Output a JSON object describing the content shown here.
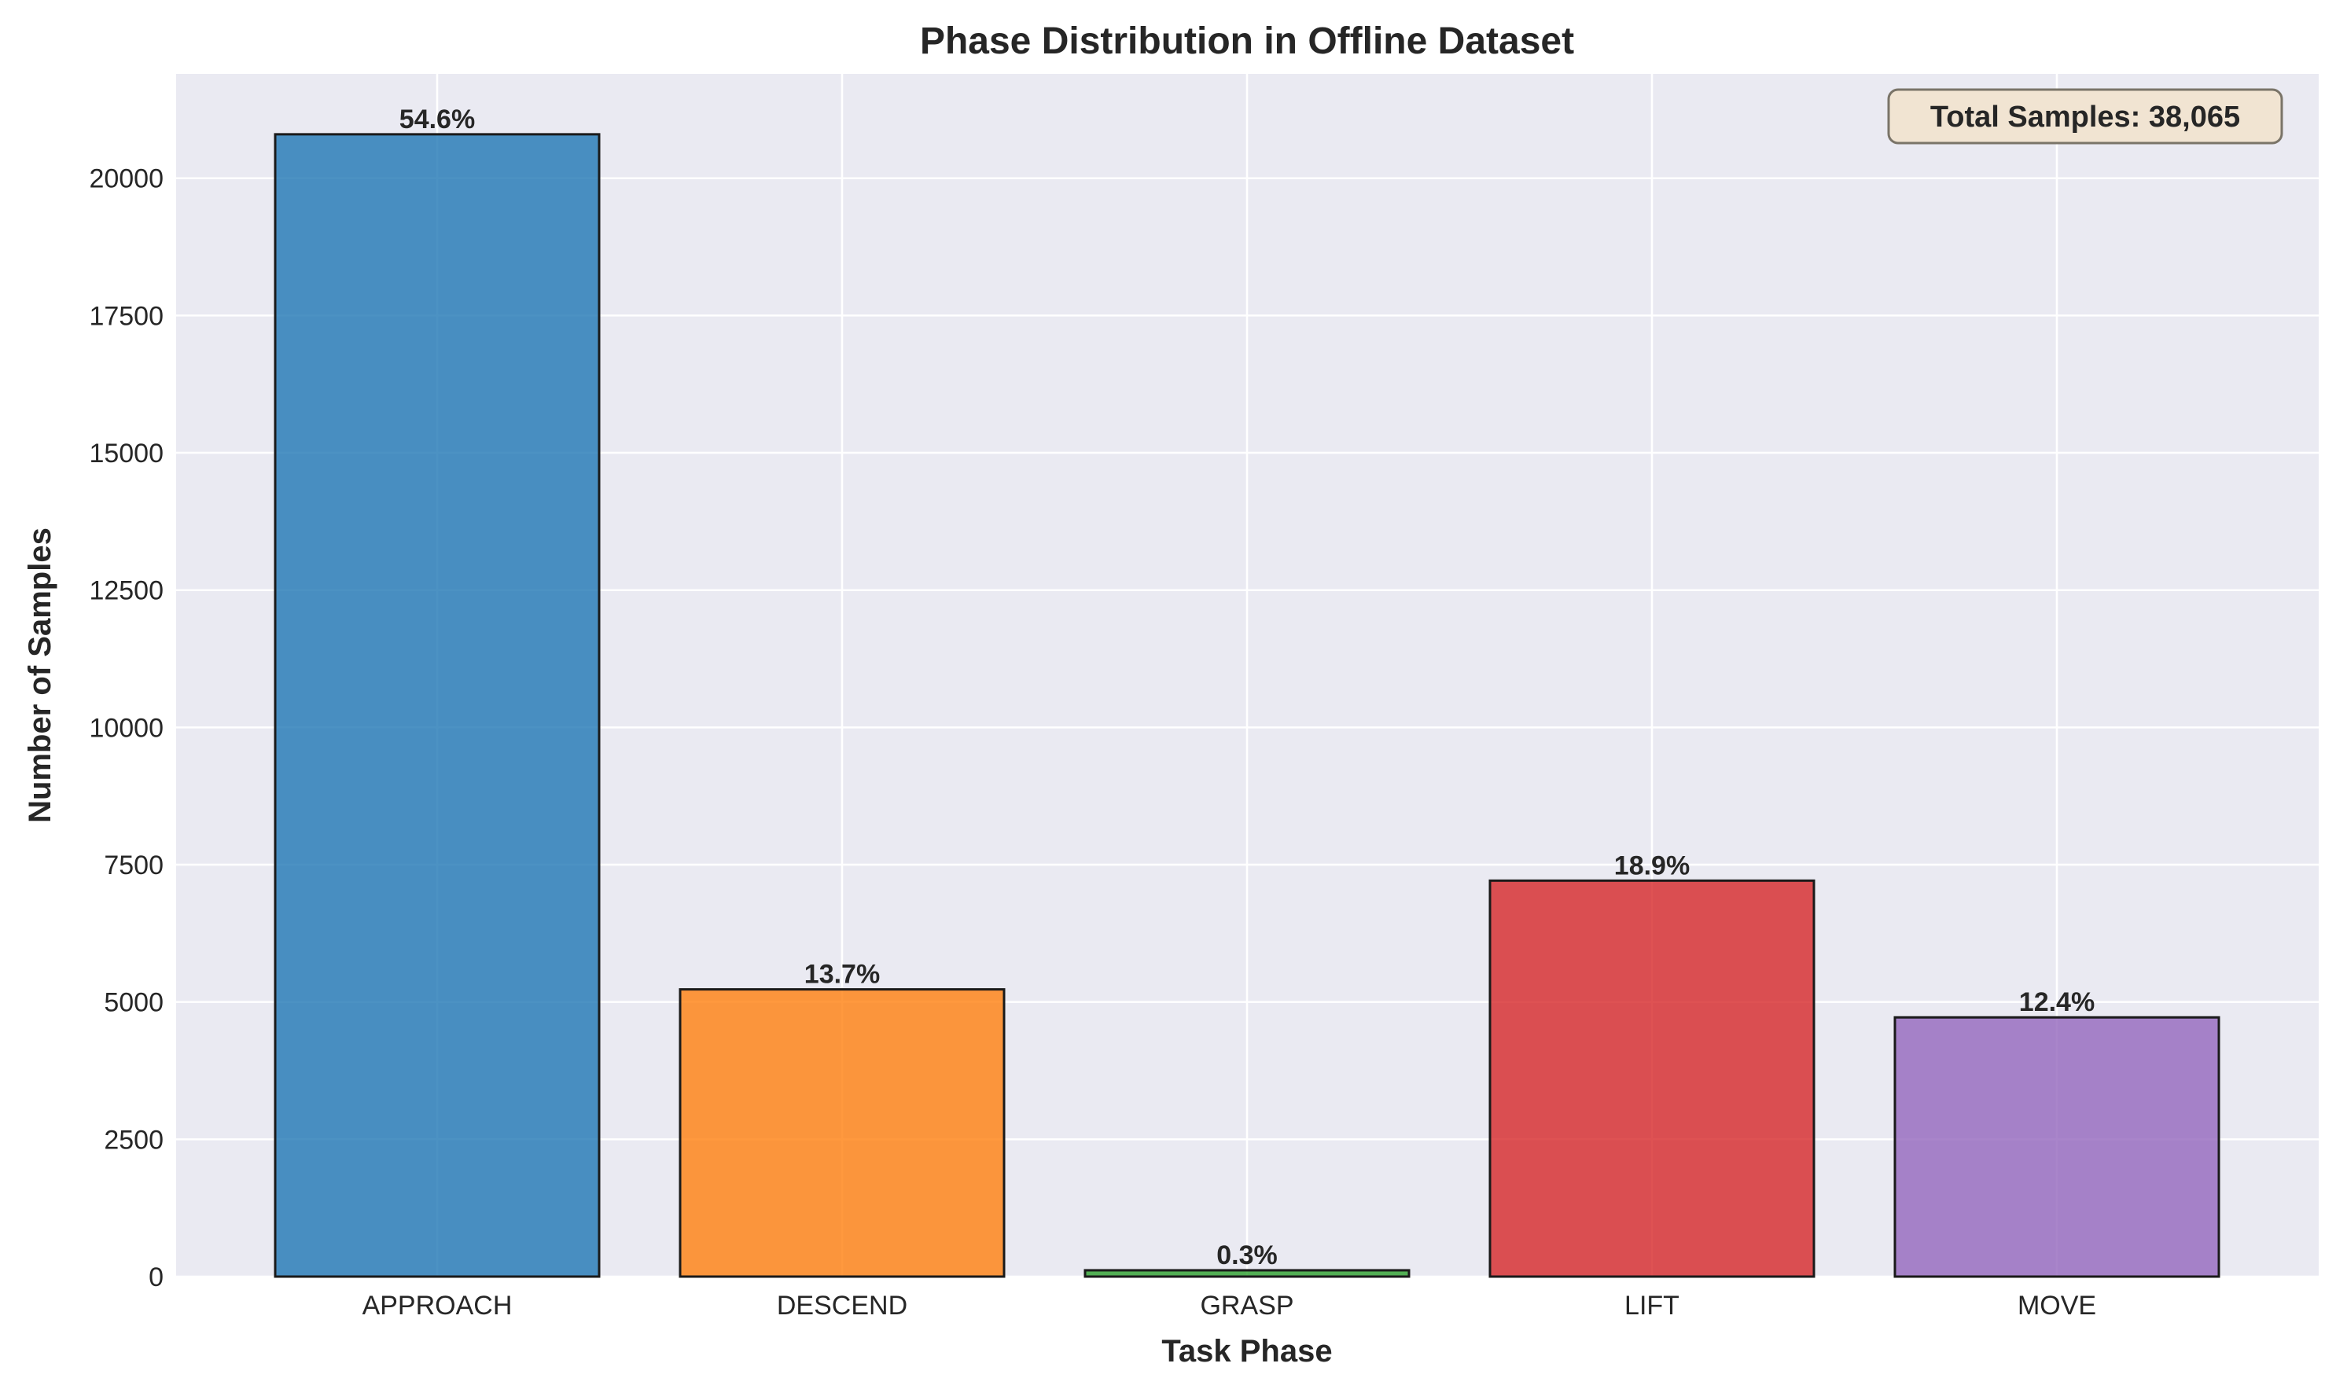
{
  "chart_data": {
    "type": "bar",
    "title": "Phase Distribution in Offline Dataset",
    "xlabel": "Task Phase",
    "ylabel": "Number of Samples",
    "categories": [
      "APPROACH",
      "DESCEND",
      "GRASP",
      "LIFT",
      "MOVE"
    ],
    "values": [
      20800,
      5230,
      115,
      7210,
      4720
    ],
    "bar_labels": [
      "54.6%",
      "13.7%",
      "0.3%",
      "18.9%",
      "12.4%"
    ],
    "colors": [
      "#1f77b4",
      "#ff7f0e",
      "#2ca02c",
      "#d62728",
      "#9467bd"
    ],
    "ylim": [
      0,
      21900
    ],
    "yticks": [
      0,
      2500,
      5000,
      7500,
      10000,
      12500,
      15000,
      17500,
      20000
    ],
    "grid": true,
    "annotation": "Total Samples: 38,065",
    "annotation_position": "top-right",
    "plot_background": "#eaeaf2"
  }
}
